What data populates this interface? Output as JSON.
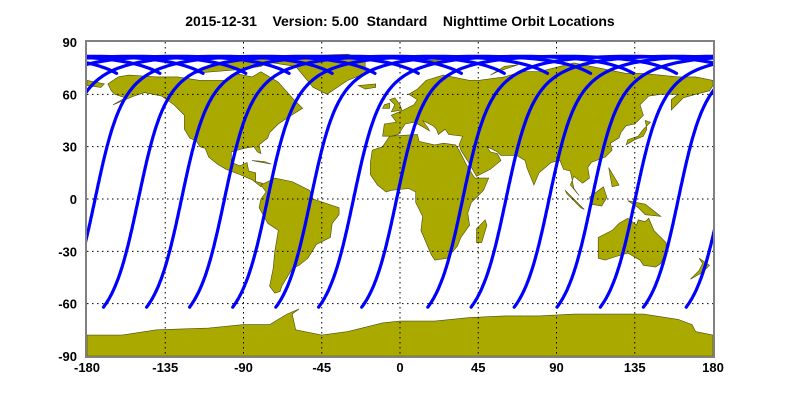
{
  "title": "2015-12-31    Version: 5.00  Standard    Nighttime Orbit Locations",
  "colors": {
    "land": "#a9a900",
    "coast": "#4a4a10",
    "track": "#0000ff",
    "frame": "#808080"
  },
  "chart_data": {
    "type": "line",
    "title": "2015-12-31    Version: 5.00  Standard    Nighttime Orbit Locations",
    "xlim": [
      -180,
      180
    ],
    "ylim": [
      -90,
      90
    ],
    "xticks": [
      "-180",
      "-135",
      "-90",
      "-45",
      "0",
      "45",
      "90",
      "135",
      "180"
    ],
    "yticks": [
      "90",
      "60",
      "30",
      "0",
      "-30",
      "-60",
      "-90"
    ],
    "grid": true,
    "track_start_lat": -62,
    "track_start_lons": [
      -170.5,
      -145.7,
      -121,
      -96.2,
      -71.4,
      -46.8,
      -22,
      16,
      40.9,
      65.7,
      90.3,
      115.2,
      140,
      164.6
    ]
  }
}
